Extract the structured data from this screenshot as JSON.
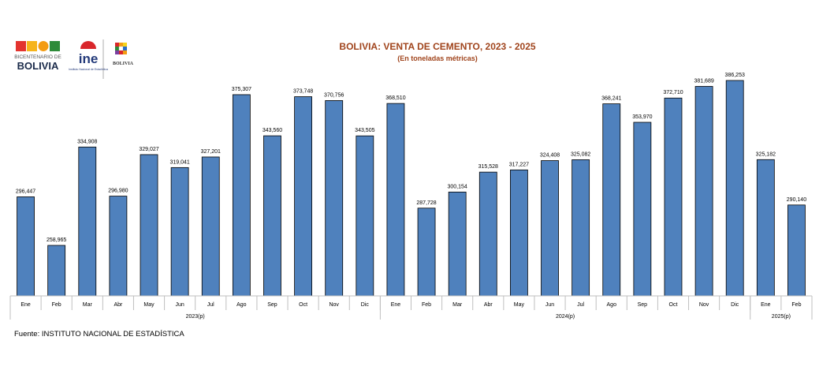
{
  "logos": {
    "bicentenario_line1": "BICENTENARIO DE",
    "bicentenario_line2": "BOLIVIA",
    "ine_text": "ine",
    "ine_caption": "Instituto Nacional de Estadística",
    "estado_text": "BOLIVIA"
  },
  "source": "Fuente: INSTITUTO NACIONAL DE ESTADÍSTICA",
  "colors": {
    "bar": "#4f81bd",
    "title": "#a0441c"
  },
  "chart_data": {
    "type": "bar",
    "title": "BOLIVIA: VENTA DE CEMENTO, 2023 - 2025",
    "subtitle": "(En toneladas métricas)",
    "categories": [
      "Ene",
      "Feb",
      "Mar",
      "Abr",
      "May",
      "Jun",
      "Jul",
      "Ago",
      "Sep",
      "Oct",
      "Nov",
      "Dic",
      "Ene",
      "Feb",
      "Mar",
      "Abr",
      "May",
      "Jun",
      "Jul",
      "Ago",
      "Sep",
      "Oct",
      "Nov",
      "Dic",
      "Ene",
      "Feb"
    ],
    "values": [
      296447,
      258965,
      334908,
      296980,
      329027,
      319041,
      327201,
      375307,
      343560,
      373748,
      370756,
      343505,
      368510,
      287728,
      300154,
      315528,
      317227,
      324408,
      325082,
      368241,
      353970,
      372710,
      381689,
      386253,
      325182,
      290140
    ],
    "data_labels": [
      "296,447",
      "258,965",
      "334,908",
      "296,980",
      "329,027",
      "319,041",
      "327,201",
      "375,307",
      "343,560",
      "373,748",
      "370,756",
      "343,505",
      "368,510",
      "287,728",
      "300,154",
      "315,528",
      "317,227",
      "324,408",
      "325,082",
      "368,241",
      "353,970",
      "372,710",
      "381,689",
      "386,253",
      "325,182",
      "290,140"
    ],
    "groups": [
      {
        "label": "2023(p)",
        "count": 12
      },
      {
        "label": "2024(p)",
        "count": 12
      },
      {
        "label": "2025(p)",
        "count": 2
      }
    ],
    "ylim": [
      200000,
      390000
    ],
    "grid": false,
    "legend": "none"
  }
}
